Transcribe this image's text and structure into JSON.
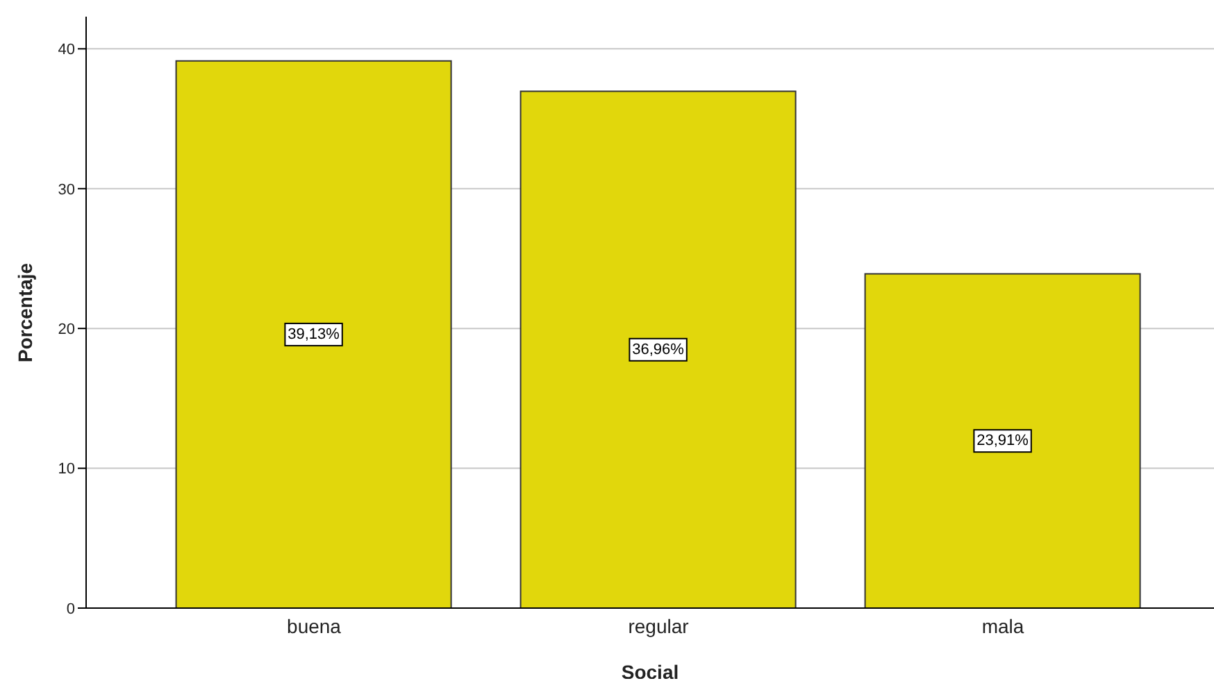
{
  "chart_data": {
    "type": "bar",
    "xlabel": "Social",
    "ylabel": "Porcentaje",
    "categories": [
      "buena",
      "regular",
      "mala"
    ],
    "values": [
      39.13,
      36.96,
      23.91
    ],
    "value_labels": [
      "39,13%",
      "36,96%",
      "23,91%"
    ],
    "color": "#e1d70c",
    "ylim": [
      0,
      42.3
    ],
    "yticks": [
      0,
      10,
      20,
      30,
      40
    ],
    "grid": "y"
  }
}
